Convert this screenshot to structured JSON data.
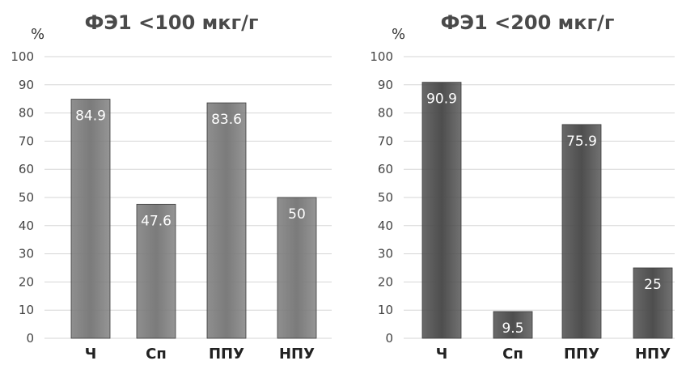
{
  "chart_data": [
    {
      "type": "bar",
      "title": "ФЭ1 <100 мкг/г",
      "ylabel": "%",
      "xlabel": "",
      "categories": [
        "Ч",
        "Сп",
        "ППУ",
        "НПУ"
      ],
      "values": [
        84.9,
        47.6,
        83.6,
        50
      ],
      "data_labels": [
        "84.9",
        "47.6",
        "83.6",
        "50"
      ],
      "yticks": [
        "0",
        "10",
        "20",
        "30",
        "40",
        "50",
        "60",
        "70",
        "80",
        "90",
        "100"
      ],
      "ylim": [
        0,
        100
      ],
      "grid": true,
      "legend": "none",
      "bar_color": "#7b7b7b"
    },
    {
      "type": "bar",
      "title": "ФЭ1 <200 мкг/г",
      "ylabel": "%",
      "xlabel": "",
      "categories": [
        "Ч",
        "Сп",
        "ППУ",
        "НПУ"
      ],
      "values": [
        90.9,
        9.5,
        75.9,
        25
      ],
      "data_labels": [
        "90.9",
        "9.5",
        "75.9",
        "25"
      ],
      "yticks": [
        "0",
        "10",
        "20",
        "30",
        "40",
        "50",
        "60",
        "70",
        "80",
        "90",
        "100"
      ],
      "ylim": [
        0,
        100
      ],
      "grid": true,
      "legend": "none",
      "bar_color": "#4e4e4e"
    }
  ]
}
